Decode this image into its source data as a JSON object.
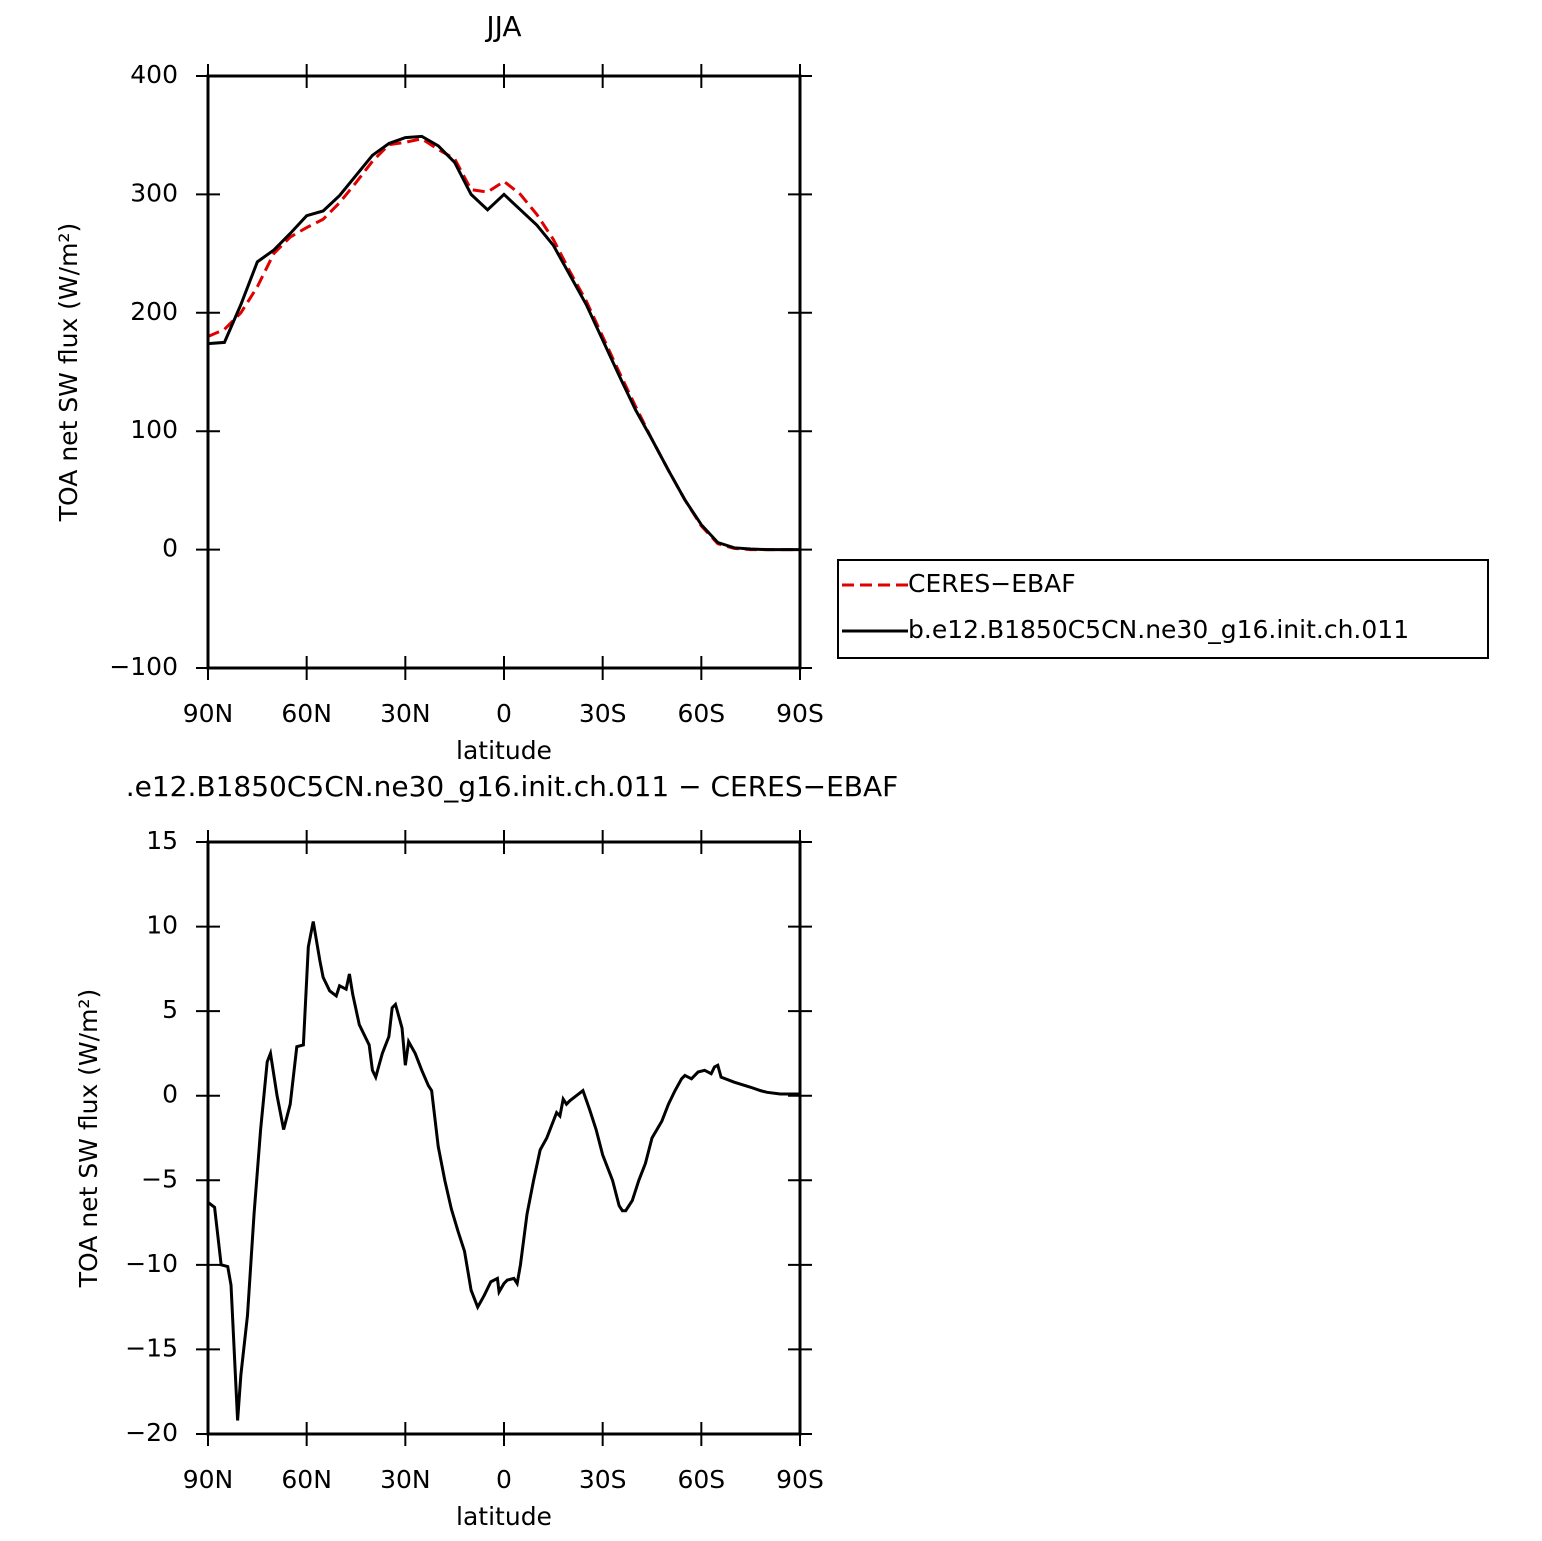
{
  "chart_data": [
    {
      "type": "line",
      "title": "JJA",
      "xlabel": "latitude",
      "ylabel": "TOA net SW flux (W/m²)",
      "x": [
        90,
        85,
        80,
        75,
        70,
        65,
        60,
        55,
        50,
        45,
        40,
        35,
        30,
        25,
        20,
        15,
        10,
        5,
        0,
        -5,
        -10,
        -15,
        -20,
        -25,
        -30,
        -35,
        -40,
        -45,
        -50,
        -55,
        -60,
        -65,
        -70,
        -75,
        -80,
        -85,
        -90
      ],
      "series": [
        {
          "name": "CERES−EBAF",
          "color": "#e00000",
          "dash": "dashed",
          "values": [
            180,
            186,
            200,
            222,
            250,
            264,
            272,
            279,
            293,
            310,
            328,
            342,
            344,
            347,
            338,
            330,
            304,
            302,
            311,
            300,
            283,
            262,
            235,
            210,
            180,
            150,
            121,
            93,
            67,
            42,
            20,
            5,
            1,
            0,
            0,
            0,
            0
          ]
        },
        {
          "name": "b.e12.B1850C5CN.ne30_g16.init.ch.011",
          "color": "#000000",
          "dash": "solid",
          "values": [
            174,
            175,
            207,
            243,
            253,
            267,
            282,
            286,
            299,
            316,
            333,
            343,
            348,
            349,
            341,
            327,
            300,
            287,
            300,
            287,
            274,
            257,
            232,
            207,
            177,
            147,
            118,
            93,
            67,
            42,
            21,
            6,
            1.5,
            0.5,
            0,
            0,
            0
          ]
        }
      ],
      "xlim": [
        90,
        -90
      ],
      "xticks": [
        {
          "value": 90,
          "label": "90N"
        },
        {
          "value": 60,
          "label": "60N"
        },
        {
          "value": 30,
          "label": "30N"
        },
        0,
        {
          "value": -30,
          "label": "30S"
        },
        {
          "value": -60,
          "label": "60S"
        },
        {
          "value": -90,
          "label": "90S"
        }
      ],
      "ylim": [
        -100,
        400
      ],
      "yticks": [
        {
          "value": -100,
          "label": "−100"
        },
        0,
        100,
        200,
        300,
        400
      ],
      "grid": false,
      "legend": true
    },
    {
      "type": "line",
      "title": ".e12.B1850C5CN.ne30_g16.init.ch.011 − CERES−EBAF",
      "xlabel": "latitude",
      "ylabel": "TOA net SW flux (W/m²)",
      "x": [
        90,
        88,
        86,
        84,
        83,
        81,
        80,
        78,
        76,
        74,
        72,
        71,
        69,
        67,
        65,
        63,
        61,
        59.5,
        58,
        56,
        55,
        53,
        51,
        50,
        48,
        47,
        46,
        44,
        43,
        41,
        40,
        39,
        37,
        35,
        34,
        33,
        31,
        30,
        29,
        27,
        25,
        23,
        22,
        20,
        18,
        16,
        14,
        12,
        10,
        8,
        6,
        4,
        2,
        1.5,
        0,
        -1,
        -3,
        -4,
        -5,
        -6,
        -7,
        -9,
        -11,
        -13,
        -14,
        -16,
        -17,
        -18,
        -19,
        -20,
        -22,
        -24,
        -26,
        -28,
        -30,
        -33,
        -35,
        -36,
        -37,
        -39,
        -41,
        -43,
        -45,
        -48,
        -50,
        -52,
        -54,
        -55,
        -57,
        -59,
        -61,
        -63,
        -64,
        -65,
        -66,
        -70,
        -75,
        -78,
        -80,
        -84,
        -90
      ],
      "series": [
        {
          "color": "#000000",
          "dash": "solid",
          "values": [
            -6.3,
            -6.6,
            -10,
            -10.1,
            -11.2,
            -19.2,
            -16.5,
            -13,
            -7,
            -2,
            2,
            2.5,
            0,
            -2,
            -0.5,
            2.9,
            3,
            8.8,
            10.3,
            8,
            7,
            6.2,
            5.9,
            6.5,
            6.3,
            7.2,
            6,
            4.2,
            3.8,
            3,
            1.5,
            1.1,
            2.5,
            3.5,
            5.2,
            5.4,
            4,
            1.8,
            3.2,
            2.5,
            1.5,
            0.6,
            0.3,
            -3,
            -5,
            -6.7,
            -8,
            -9.2,
            -11.5,
            -12.5,
            -11.8,
            -11,
            -10.8,
            -11.6,
            -11.1,
            -10.9,
            -10.8,
            -11.1,
            -10,
            -8.5,
            -7,
            -5,
            -3.2,
            -2.5,
            -2,
            -1,
            -1.2,
            -0.2,
            -0.5,
            -0.3,
            0,
            0.3,
            -0.8,
            -2,
            -3.5,
            -5,
            -6.5,
            -6.8,
            -6.8,
            -6.2,
            -5,
            -4,
            -2.5,
            -1.5,
            -0.5,
            0.3,
            1,
            1.2,
            1,
            1.4,
            1.5,
            1.3,
            1.7,
            1.8,
            1.1,
            0.8,
            0.5,
            0.3,
            0.2,
            0.1,
            0.1
          ]
        }
      ],
      "xlim": [
        90,
        -90
      ],
      "xticks": [
        {
          "value": 90,
          "label": "90N"
        },
        {
          "value": 60,
          "label": "60N"
        },
        {
          "value": 30,
          "label": "30N"
        },
        0,
        {
          "value": -30,
          "label": "30S"
        },
        {
          "value": -60,
          "label": "60S"
        },
        {
          "value": -90,
          "label": "90S"
        }
      ],
      "ylim": [
        -20,
        15
      ],
      "yticks": [
        {
          "value": -20,
          "label": "−20"
        },
        {
          "value": -15,
          "label": "−15"
        },
        {
          "value": -10,
          "label": "−10"
        },
        {
          "value": -5,
          "label": "−5"
        },
        0,
        5,
        10,
        15
      ],
      "grid": false,
      "legend": false
    }
  ]
}
